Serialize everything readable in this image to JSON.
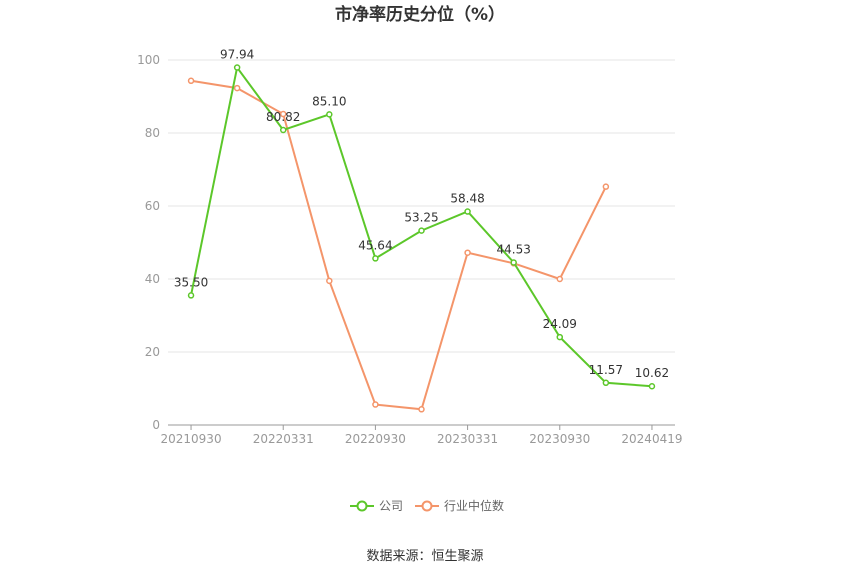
{
  "chart_data": {
    "type": "line",
    "title": "市净率历史分位（%）",
    "x": [
      "20210930",
      "20211231",
      "20220331",
      "20220630",
      "20220930",
      "20221230",
      "20230331",
      "20230630",
      "20230930",
      "20231229",
      "20240419"
    ],
    "x_tick_labels": [
      "20210930",
      "20220331",
      "20220930",
      "20230331",
      "20230930",
      "20240419"
    ],
    "y_ticks": [
      "0",
      "20",
      "40",
      "60",
      "80",
      "100"
    ],
    "ylim": [
      0,
      100
    ],
    "grid": true,
    "legend_position": "bottom",
    "series": [
      {
        "name": "公司",
        "color": "#5cc72a",
        "values": [
          35.5,
          97.94,
          80.82,
          85.1,
          45.64,
          53.25,
          58.48,
          44.53,
          24.09,
          11.57,
          10.62
        ],
        "labels": [
          "35.50",
          "97.94",
          "80.82",
          "85.10",
          "45.64",
          "53.25",
          "58.48",
          "44.53",
          "24.09",
          "11.57",
          "10.62"
        ]
      },
      {
        "name": "行业中位数",
        "color": "#f4956a",
        "values": [
          94.3,
          92.3,
          85.2,
          39.5,
          5.6,
          4.3,
          47.2,
          44.3,
          40.0,
          65.3,
          null
        ]
      }
    ]
  },
  "source": "数据来源：恒生聚源"
}
